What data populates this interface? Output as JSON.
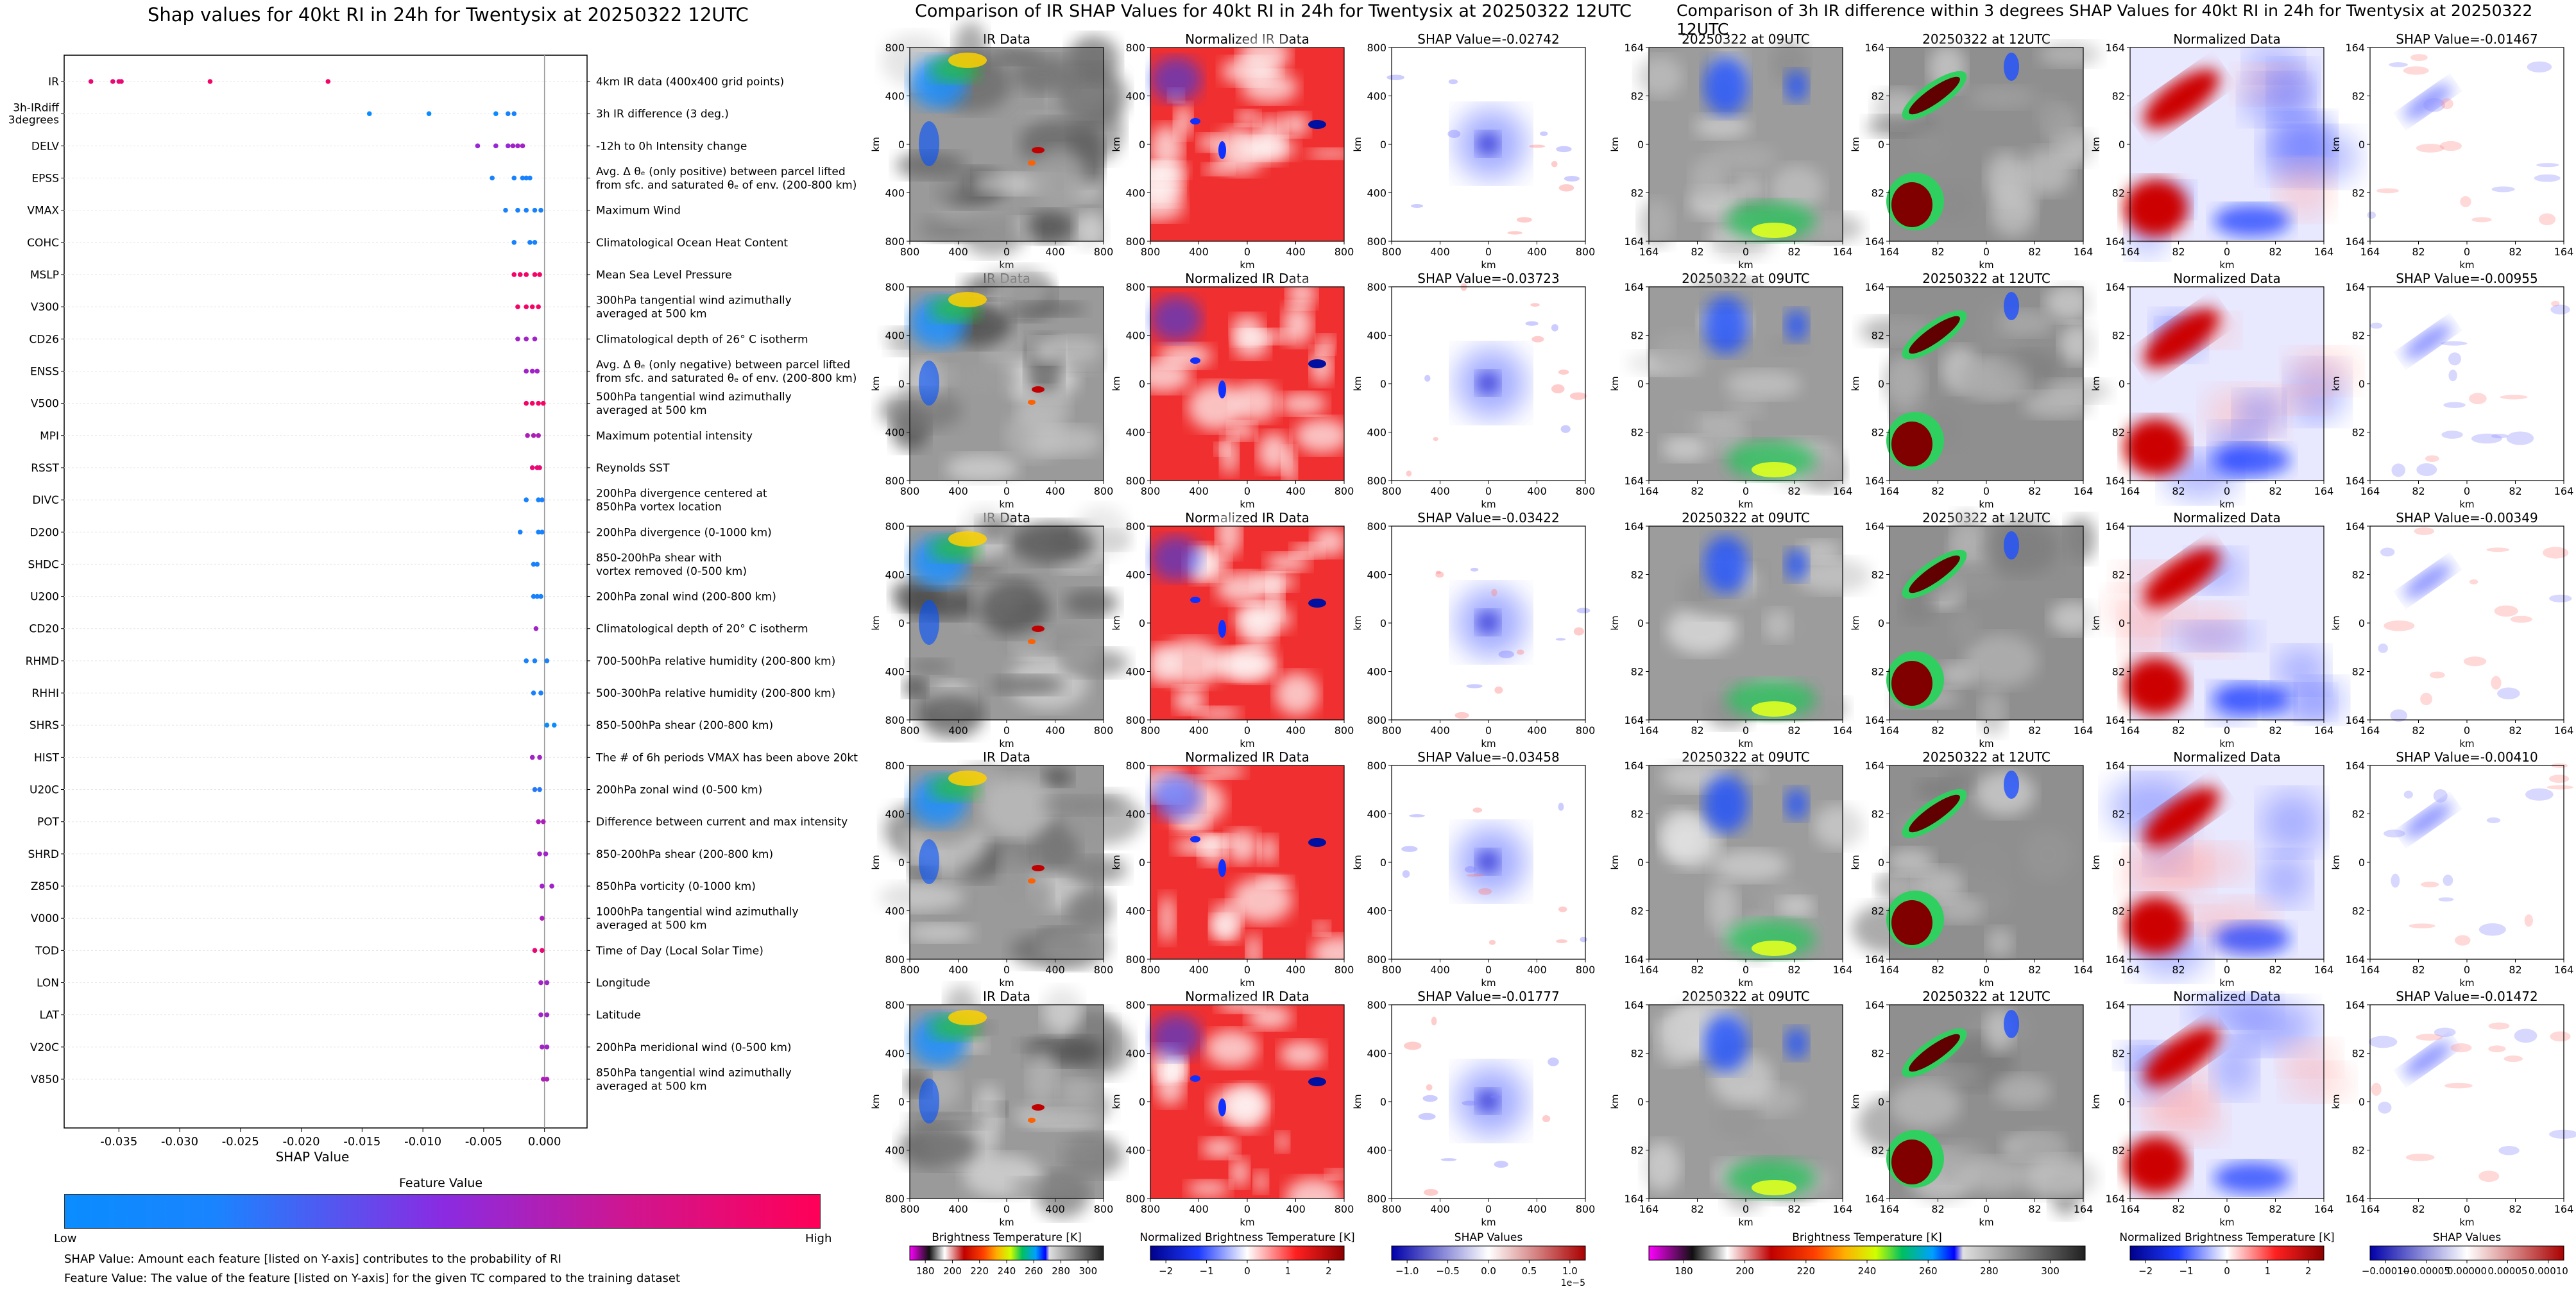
{
  "shap_title": "Shap values for 40kt RI in 24h for Twentysix at 20250322 12UTC",
  "ir_title": "Comparison of IR SHAP Values for 40kt RI in 24h for Twentysix at 20250322 12UTC",
  "diff_title": "Comparison of 3h IR difference within 3 degrees SHAP Values for 40kt RI in 24h for Twentysix at 20250322 12UTC",
  "colors": {
    "low": "#0a8cff",
    "mid": "#8a2be2",
    "high": "#ff0058"
  },
  "chart_data": [
    {
      "type": "scatter",
      "name": "beeswarm",
      "xlabel": "SHAP Value",
      "xlim": [
        -0.0395,
        0.0035
      ],
      "xticks": [
        "-0.035",
        "-0.030",
        "-0.025",
        "-0.020",
        "-0.015",
        "-0.010",
        "-0.005",
        "0.000"
      ],
      "xtick_values": [
        -0.035,
        -0.03,
        -0.025,
        -0.02,
        -0.015,
        -0.01,
        -0.005,
        0.0
      ],
      "features": [
        {
          "code": "IR",
          "desc": [
            "4km IR data (400x400 grid points)"
          ],
          "points": [
            [
              -0.0373,
              0.9
            ],
            [
              -0.0355,
              0.9
            ],
            [
              -0.035,
              0.9
            ],
            [
              -0.0348,
              0.9
            ],
            [
              -0.0275,
              0.95
            ],
            [
              -0.0178,
              0.95
            ]
          ]
        },
        {
          "code": "3h-IRdiff\n3degrees",
          "desc": [
            "3h IR difference (3 deg.)"
          ],
          "points": [
            [
              -0.0144,
              0.0
            ],
            [
              -0.0095,
              0.0
            ],
            [
              -0.004,
              0.0
            ],
            [
              -0.003,
              0.05
            ],
            [
              -0.0025,
              0.05
            ]
          ]
        },
        {
          "code": "DELV",
          "desc": [
            "-12h to 0h Intensity change"
          ],
          "points": [
            [
              -0.0055,
              0.55
            ],
            [
              -0.004,
              0.55
            ],
            [
              -0.003,
              0.55
            ],
            [
              -0.0026,
              0.6
            ],
            [
              -0.0022,
              0.6
            ],
            [
              -0.0018,
              0.6
            ]
          ]
        },
        {
          "code": "EPSS",
          "desc": [
            "Avg. Δ θₑ (only positive) between parcel lifted",
            "from sfc. and saturated θₑ of env. (200-800 km)"
          ],
          "points": [
            [
              -0.0043,
              0.05
            ],
            [
              -0.0025,
              0.05
            ],
            [
              -0.0018,
              0.05
            ],
            [
              -0.0015,
              0.05
            ],
            [
              -0.0012,
              0.05
            ]
          ]
        },
        {
          "code": "VMAX",
          "desc": [
            "Maximum Wind"
          ],
          "points": [
            [
              -0.0032,
              0.05
            ],
            [
              -0.0022,
              0.05
            ],
            [
              -0.0015,
              0.05
            ],
            [
              -0.0008,
              0.05
            ],
            [
              -0.0003,
              0.05
            ]
          ]
        },
        {
          "code": "COHC",
          "desc": [
            "Climatological Ocean Heat Content"
          ],
          "points": [
            [
              -0.0025,
              0.05
            ],
            [
              -0.0012,
              0.05
            ],
            [
              -0.0008,
              0.05
            ]
          ]
        },
        {
          "code": "MSLP",
          "desc": [
            "Mean Sea Level Pressure"
          ],
          "points": [
            [
              -0.0025,
              0.95
            ],
            [
              -0.002,
              0.95
            ],
            [
              -0.0015,
              0.95
            ],
            [
              -0.0008,
              0.95
            ],
            [
              -0.0004,
              0.95
            ]
          ]
        },
        {
          "code": "V300",
          "desc": [
            "300hPa tangential wind azimuthally",
            "averaged at 500 km"
          ],
          "points": [
            [
              -0.0022,
              0.95
            ],
            [
              -0.0015,
              0.95
            ],
            [
              -0.001,
              0.95
            ],
            [
              -0.0005,
              0.95
            ]
          ]
        },
        {
          "code": "CD26",
          "desc": [
            "Climatological depth of 26° C isotherm"
          ],
          "points": [
            [
              -0.0022,
              0.6
            ],
            [
              -0.0015,
              0.6
            ],
            [
              -0.0008,
              0.6
            ]
          ]
        },
        {
          "code": "ENSS",
          "desc": [
            "Avg. Δ θₑ (only negative) between parcel lifted",
            "from sfc. and saturated θₑ of env. (200-800 km)"
          ],
          "points": [
            [
              -0.0015,
              0.6
            ],
            [
              -0.001,
              0.6
            ],
            [
              -0.0006,
              0.6
            ]
          ]
        },
        {
          "code": "V500",
          "desc": [
            "500hPa tangential wind azimuthally",
            "averaged at 500 km"
          ],
          "points": [
            [
              -0.0015,
              0.95
            ],
            [
              -0.001,
              0.95
            ],
            [
              -0.0005,
              0.95
            ],
            [
              -0.0001,
              0.95
            ]
          ]
        },
        {
          "code": "MPI",
          "desc": [
            "Maximum potential intensity"
          ],
          "points": [
            [
              -0.0014,
              0.65
            ],
            [
              -0.0009,
              0.65
            ],
            [
              -0.0005,
              0.65
            ]
          ]
        },
        {
          "code": "RSST",
          "desc": [
            "Reynolds SST"
          ],
          "points": [
            [
              -0.001,
              0.9
            ],
            [
              -0.0006,
              0.9
            ],
            [
              -0.0004,
              0.9
            ]
          ]
        },
        {
          "code": "DIVC",
          "desc": [
            "200hPa divergence centered at",
            "850hPa vortex location"
          ],
          "points": [
            [
              -0.0015,
              0.05
            ],
            [
              -0.0005,
              0.05
            ],
            [
              -0.0002,
              0.05
            ]
          ]
        },
        {
          "code": "D200",
          "desc": [
            "200hPa divergence (0-1000 km)"
          ],
          "points": [
            [
              -0.002,
              0.05
            ],
            [
              -0.0005,
              0.05
            ],
            [
              -0.0002,
              0.05
            ]
          ]
        },
        {
          "code": "SHDC",
          "desc": [
            "850-200hPa shear with",
            "vortex removed (0-500 km)"
          ],
          "points": [
            [
              -0.0009,
              0.05
            ],
            [
              -0.0006,
              0.05
            ]
          ]
        },
        {
          "code": "U200",
          "desc": [
            "200hPa zonal wind (200-800 km)"
          ],
          "points": [
            [
              -0.0009,
              0.05
            ],
            [
              -0.0006,
              0.05
            ],
            [
              -0.0003,
              0.05
            ]
          ]
        },
        {
          "code": "CD20",
          "desc": [
            "Climatological depth of 20° C isotherm"
          ],
          "points": [
            [
              -0.0007,
              0.6
            ]
          ]
        },
        {
          "code": "RHMD",
          "desc": [
            "700-500hPa relative humidity (200-800 km)"
          ],
          "points": [
            [
              -0.0015,
              0.05
            ],
            [
              -0.0008,
              0.05
            ],
            [
              0.0002,
              0.05
            ]
          ]
        },
        {
          "code": "RHHI",
          "desc": [
            "500-300hPa relative humidity (200-800 km)"
          ],
          "points": [
            [
              -0.0009,
              0.05
            ],
            [
              -0.0003,
              0.05
            ]
          ]
        },
        {
          "code": "SHRS",
          "desc": [
            "850-500hPa shear (200-800 km)"
          ],
          "points": [
            [
              0.0002,
              0.0
            ],
            [
              0.0008,
              0.0
            ]
          ]
        },
        {
          "code": "HIST",
          "desc": [
            "The # of 6h periods VMAX has been above 20kt"
          ],
          "points": [
            [
              -0.001,
              0.6
            ],
            [
              -0.0004,
              0.6
            ]
          ]
        },
        {
          "code": "U20C",
          "desc": [
            "200hPa zonal wind (0-500 km)"
          ],
          "points": [
            [
              -0.0008,
              0.1
            ],
            [
              -0.0004,
              0.1
            ]
          ]
        },
        {
          "code": "POT",
          "desc": [
            "Difference between current and max intensity"
          ],
          "points": [
            [
              -0.0005,
              0.65
            ],
            [
              -0.0001,
              0.65
            ]
          ]
        },
        {
          "code": "SHRD",
          "desc": [
            "850-200hPa shear (200-800 km)"
          ],
          "points": [
            [
              -0.0004,
              0.6
            ],
            [
              0.0001,
              0.6
            ]
          ]
        },
        {
          "code": "Z850",
          "desc": [
            "850hPa vorticity (0-1000 km)"
          ],
          "points": [
            [
              -0.0002,
              0.6
            ],
            [
              0.0006,
              0.6
            ]
          ]
        },
        {
          "code": "V000",
          "desc": [
            "1000hPa tangential wind azimuthally",
            "averaged at 500 km"
          ],
          "points": [
            [
              -0.0002,
              0.65
            ]
          ]
        },
        {
          "code": "TOD",
          "desc": [
            "Time of Day (Local Solar Time)"
          ],
          "points": [
            [
              -0.0008,
              0.9
            ],
            [
              -0.0002,
              0.9
            ]
          ]
        },
        {
          "code": "LON",
          "desc": [
            "Longitude"
          ],
          "points": [
            [
              -0.0003,
              0.6
            ],
            [
              0.0002,
              0.6
            ]
          ]
        },
        {
          "code": "LAT",
          "desc": [
            "Latitude"
          ],
          "points": [
            [
              -0.0003,
              0.6
            ],
            [
              0.0002,
              0.6
            ]
          ]
        },
        {
          "code": "V20C",
          "desc": [
            "200hPa meridional wind (0-500 km)"
          ],
          "points": [
            [
              -0.0002,
              0.6
            ],
            [
              0.0002,
              0.6
            ]
          ]
        },
        {
          "code": "V850",
          "desc": [
            "850hPa tangential wind azimuthally",
            "averaged at 500 km"
          ],
          "points": [
            [
              -0.0001,
              0.65
            ],
            [
              0.0002,
              0.65
            ]
          ]
        }
      ]
    },
    {
      "type": "heatmap",
      "name": "ir-grid",
      "column_titles": [
        "IR Data",
        "Normalized IR Data",
        "SHAP Value=-0.02742"
      ],
      "row_shap_titles": [
        "SHAP Value=-0.02742",
        "SHAP Value=-0.03723",
        "SHAP Value=-0.03422",
        "SHAP Value=-0.03458",
        "SHAP Value=-0.01777"
      ],
      "ticks": [
        "800",
        "400",
        "0",
        "400",
        "800"
      ],
      "axis_label": "km",
      "colorbars": [
        {
          "label": "Brightness Temperature [K]",
          "ticks": [
            "180",
            "200",
            "220",
            "240",
            "260",
            "280",
            "300"
          ]
        },
        {
          "label": "Normalized Brightness Temperature [K]",
          "ticks": [
            "−2",
            "−1",
            "0",
            "1",
            "2"
          ]
        },
        {
          "label": "SHAP Values",
          "ticks": [
            "−1.0",
            "−0.5",
            "0.0",
            "0.5",
            "1.0"
          ],
          "exponent": "1e−5"
        }
      ]
    },
    {
      "type": "heatmap",
      "name": "diff-grid",
      "column_titles": [
        "20250322 at 09UTC",
        "20250322 at 12UTC",
        "Normalized Data"
      ],
      "row_shap_titles": [
        "SHAP Value=-0.01467",
        "SHAP Value=-0.00955",
        "SHAP Value=-0.00349",
        "SHAP Value=-0.00410",
        "SHAP Value=-0.01472"
      ],
      "ticks": [
        "164",
        "82",
        "0",
        "82",
        "164"
      ],
      "axis_label": "km",
      "colorbars": [
        {
          "label": "Brightness Temperature [K]",
          "ticks": [
            "180",
            "200",
            "220",
            "240",
            "260",
            "280",
            "300"
          ]
        },
        {
          "label": "Normalized Brightness Temperature [K]",
          "ticks": [
            "−2",
            "−1",
            "0",
            "1",
            "2"
          ]
        },
        {
          "label": "SHAP Values",
          "ticks": [
            "−0.00010",
            "−0.00005",
            "0.00000",
            "0.00005",
            "0.00010"
          ]
        }
      ]
    }
  ],
  "feature_bar": {
    "title": "Feature Value",
    "low": "Low",
    "high": "High"
  },
  "footnotes": [
    "SHAP Value: Amount each feature [listed on Y-axis] contributes to the probability of RI",
    "Feature Value: The value of the feature [listed on Y-axis] for the given TC compared to the training dataset"
  ]
}
